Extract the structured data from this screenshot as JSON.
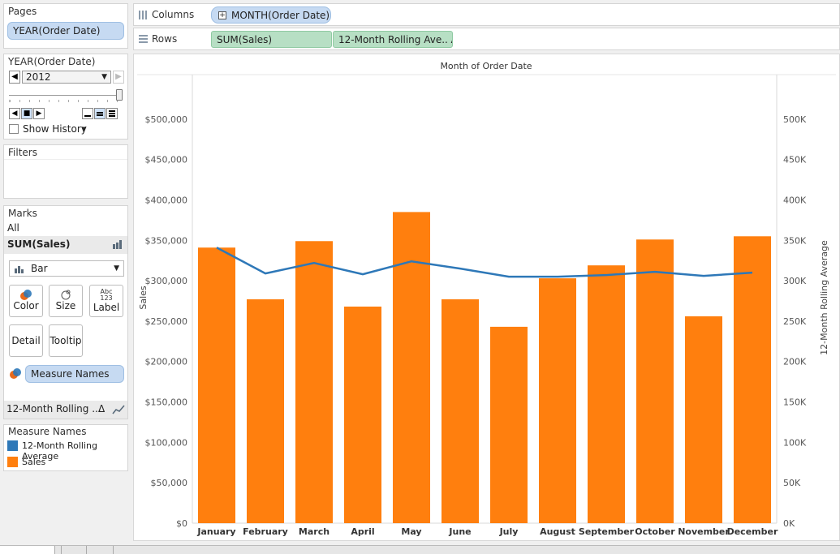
{
  "pages": {
    "title": "Pages",
    "pill": "YEAR(Order Date)"
  },
  "page_control": {
    "field": "YEAR(Order Date)",
    "value": "2012",
    "show_history": "Show History"
  },
  "filters": {
    "title": "Filters"
  },
  "marks": {
    "title": "Marks",
    "all": "All",
    "measure": "SUM(Sales)",
    "mark_type": "Bar",
    "buttons": {
      "color": "Color",
      "size": "Size",
      "label": "Label",
      "detail": "Detail",
      "tooltip": "Tooltip"
    },
    "label_icon": "Abc\n123",
    "color_pill": "Measure Names",
    "rolling": "12-Month Rolling ...",
    "rolling_delta": "Δ"
  },
  "legend": {
    "title": "Measure Names",
    "items": [
      {
        "label": "12-Month Rolling Average",
        "color": "#2e78b8"
      },
      {
        "label": "Sales",
        "color": "#ff7f0e"
      }
    ]
  },
  "shelves": {
    "columns_label": "Columns",
    "columns_pill": "MONTH(Order Date)",
    "rows_label": "Rows",
    "rows_pills": [
      "SUM(Sales)",
      "12-Month Rolling Ave.. Δ"
    ]
  },
  "colors": {
    "bar": "#ff7f0e",
    "line": "#2e78b8",
    "pill_blue": "#c6daf2",
    "pill_green": "#b7dfc4"
  },
  "chart_data": {
    "type": "bar",
    "title": "Month of Order Date",
    "categories": [
      "January",
      "February",
      "March",
      "April",
      "May",
      "June",
      "July",
      "August",
      "September",
      "October",
      "November",
      "December"
    ],
    "series": [
      {
        "name": "Sales",
        "type": "bar",
        "axis": "left",
        "values": [
          341000,
          277000,
          349000,
          268000,
          385000,
          277000,
          243000,
          303000,
          319000,
          351000,
          256000,
          355000
        ]
      },
      {
        "name": "12-Month Rolling Average",
        "type": "line",
        "axis": "right",
        "values": [
          341000,
          309000,
          322000,
          308000,
          324000,
          315000,
          305000,
          305000,
          307000,
          311000,
          306000,
          310000
        ]
      }
    ],
    "ylabel": "Sales",
    "y2label": "12-Month Rolling Average",
    "ylim": [
      0,
      550000
    ],
    "y2lim": [
      0,
      550000
    ],
    "yticks": [
      "$0",
      "$50,000",
      "$100,000",
      "$150,000",
      "$200,000",
      "$250,000",
      "$300,000",
      "$350,000",
      "$400,000",
      "$450,000",
      "$500,000"
    ],
    "y2ticks": [
      "0K",
      "50K",
      "100K",
      "150K",
      "200K",
      "250K",
      "300K",
      "350K",
      "400K",
      "450K",
      "500K"
    ],
    "grid": false
  }
}
